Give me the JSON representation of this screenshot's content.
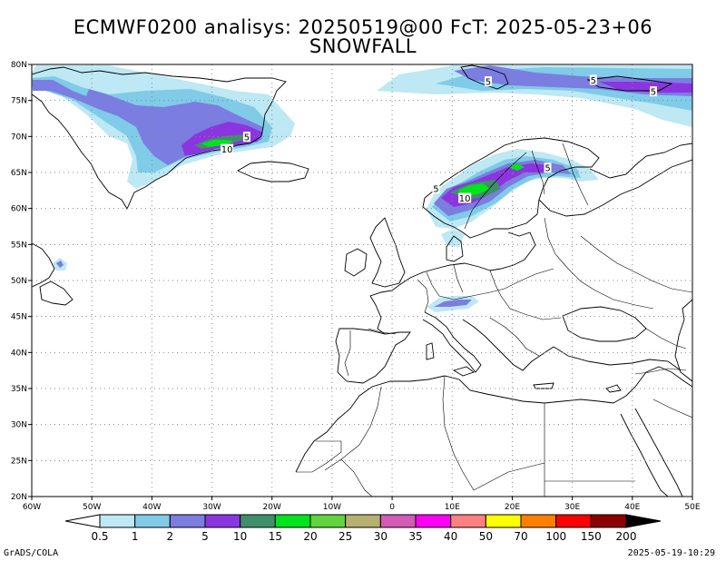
{
  "title_line1": "ECMWF0200 analisys: 20250519@00 FcT: 2025-05-23+06",
  "title_line2": "SNOWFALL",
  "footer_left": "GrADS/COLA",
  "footer_right": "2025-05-19-10:29",
  "map": {
    "lon_range": [
      -60,
      50
    ],
    "lat_range": [
      20,
      80
    ],
    "lon_ticks": [
      {
        "v": -60,
        "label": "60W"
      },
      {
        "v": -50,
        "label": "50W"
      },
      {
        "v": -40,
        "label": "40W"
      },
      {
        "v": -30,
        "label": "30W"
      },
      {
        "v": -20,
        "label": "20W"
      },
      {
        "v": -10,
        "label": "10W"
      },
      {
        "v": 0,
        "label": "0"
      },
      {
        "v": 10,
        "label": "10E"
      },
      {
        "v": 20,
        "label": "20E"
      },
      {
        "v": 30,
        "label": "30E"
      },
      {
        "v": 40,
        "label": "40E"
      },
      {
        "v": 50,
        "label": "50E"
      }
    ],
    "lat_ticks": [
      {
        "v": 20,
        "label": "20N"
      },
      {
        "v": 25,
        "label": "25N"
      },
      {
        "v": 30,
        "label": "30N"
      },
      {
        "v": 35,
        "label": "35N"
      },
      {
        "v": 40,
        "label": "40N"
      },
      {
        "v": 45,
        "label": "45N"
      },
      {
        "v": 50,
        "label": "50N"
      },
      {
        "v": 55,
        "label": "55N"
      },
      {
        "v": 60,
        "label": "60N"
      },
      {
        "v": 65,
        "label": "65N"
      },
      {
        "v": 70,
        "label": "70N"
      },
      {
        "v": 75,
        "label": "75N"
      },
      {
        "v": 80,
        "label": "80N"
      }
    ],
    "contour_labels": [
      {
        "text": "10",
        "lon": -27.5,
        "lat": 68.2
      },
      {
        "text": "5",
        "lon": -24.2,
        "lat": 69.9
      },
      {
        "text": "5",
        "lon": 16.0,
        "lat": 77.6
      },
      {
        "text": "5",
        "lon": 33.5,
        "lat": 77.8
      },
      {
        "text": "5",
        "lon": 43.5,
        "lat": 76.2
      },
      {
        "text": "5",
        "lon": 25.9,
        "lat": 65.6
      },
      {
        "text": "5",
        "lon": 7.3,
        "lat": 62.7
      },
      {
        "text": "10",
        "lon": 12.1,
        "lat": 61.4
      }
    ]
  },
  "colorbar": {
    "labels": [
      "0.5",
      "1",
      "2",
      "5",
      "10",
      "15",
      "20",
      "25",
      "30",
      "35",
      "40",
      "50",
      "70",
      "100",
      "150",
      "200"
    ],
    "colors": [
      "#bde8f4",
      "#7fcbe8",
      "#7b7de0",
      "#8b35e0",
      "#3f8f6a",
      "#00e31d",
      "#5fd43c",
      "#b8b070",
      "#d35ab5",
      "#ff00f5",
      "#ff8080",
      "#ffff00",
      "#ff8000",
      "#ff0000",
      "#8c0000"
    ]
  }
}
